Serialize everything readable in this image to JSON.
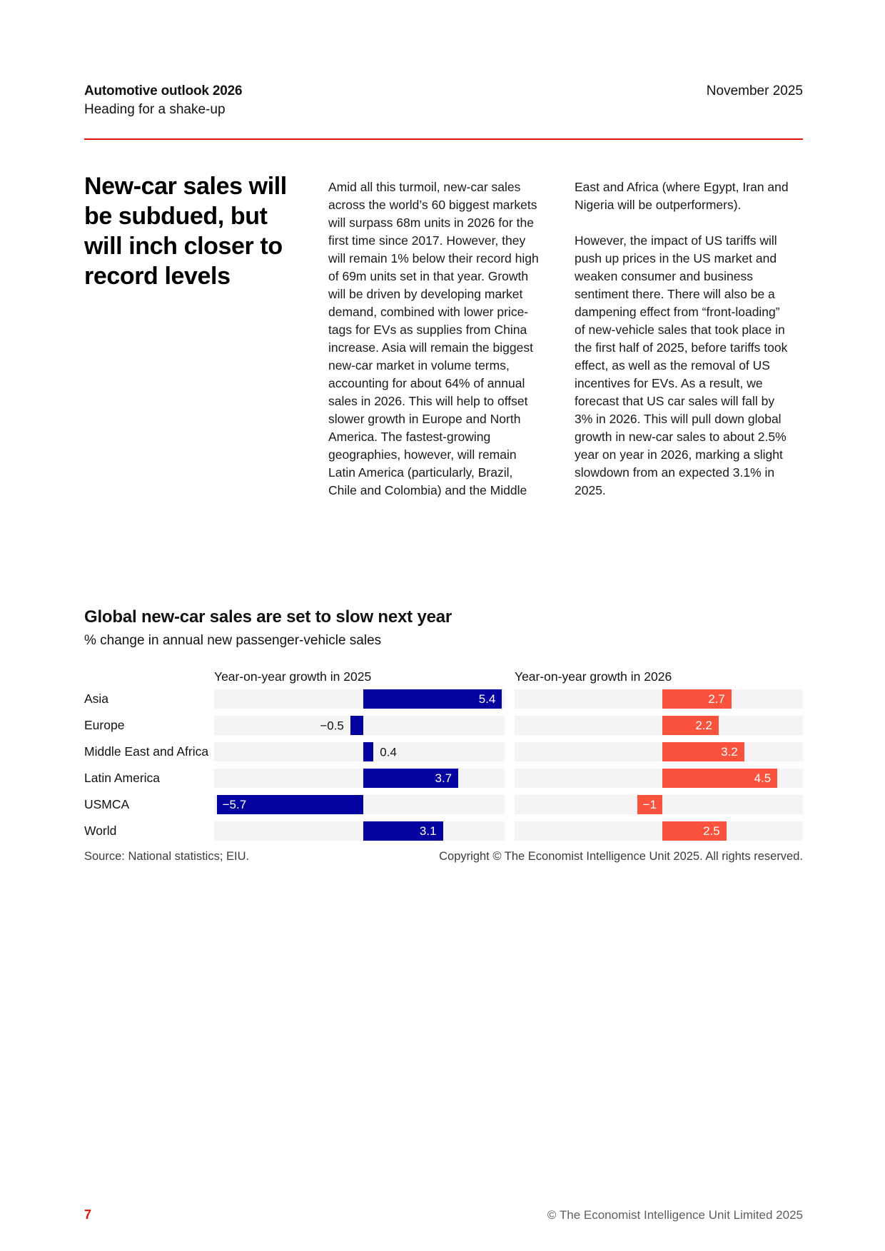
{
  "header": {
    "title": "Automotive outlook 2026",
    "subtitle": "Heading for a shake-up",
    "date": "November 2025"
  },
  "article": {
    "heading_lines": [
      "New-car sales will",
      "be subdued, but",
      "will inch closer to",
      "record levels"
    ],
    "column1_paragraphs": [
      "Amid all this turmoil, new-car sales across the world’s 60 biggest markets will surpass 68m units in 2026 for the first time since 2017. However, they will remain 1% below their record high of 69m units set in that year. Growth will be driven by developing market demand, combined with lower price-tags for EVs as supplies from China increase. Asia will remain the biggest new-car market in volume terms, accounting for about 64% of annual sales in 2026. This will help to offset slower growth in Europe and North America. The fastest-growing geographies, however, will remain Latin America (particularly, Brazil, Chile and Colombia) and the Middle"
    ],
    "column2_paragraphs": [
      "East and Africa (where Egypt, Iran and Nigeria will be outperformers).",
      "However, the impact of US tariffs will push up prices in the US market and weaken consumer and business sentiment there. There will also be a dampening effect from “front-loading” of new-vehicle sales that took place in the first half of 2025, before tariffs took effect, as well as the removal of US incentives for EVs. As a result, we forecast that US car sales will fall by 3% in 2026. This will pull down global growth in new-car sales to about 2.5% year on year in 2026, marking a slight slowdown from an expected 3.1% in 2025."
    ]
  },
  "chart_data": {
    "type": "bar",
    "orientation": "horizontal",
    "title": "Global new-car sales are set to slow next year",
    "subtitle": "% change in annual new passenger-vehicle sales",
    "categories": [
      "Asia",
      "Europe",
      "Middle East and Africa",
      "Latin America",
      "USMCA",
      "World"
    ],
    "series": [
      {
        "name": "Year-on-year growth in 2025",
        "color": "#0503a0",
        "values": [
          5.4,
          -0.5,
          0.4,
          3.7,
          -5.7,
          3.1
        ],
        "value_labels": [
          "5.4",
          "−0.5",
          "0.4",
          "3.7",
          "−5.7",
          "3.1"
        ],
        "label_inside": [
          true,
          false,
          false,
          true,
          true,
          true
        ]
      },
      {
        "name": "Year-on-year growth in 2026",
        "color": "#fa523c",
        "values": [
          2.7,
          2.2,
          3.2,
          4.5,
          -1,
          2.5
        ],
        "value_labels": [
          "2.7",
          "2.2",
          "3.2",
          "4.5",
          "−1",
          "2.5"
        ],
        "label_inside": [
          true,
          true,
          true,
          true,
          true,
          true
        ]
      }
    ],
    "xlim": [
      -5.8,
      5.5
    ],
    "grid": false,
    "legend_position": "headers above each panel",
    "track_color": "#f4f4f4"
  },
  "chart_footer": {
    "source": "Source: National statistics; EIU.",
    "copyright": "Copyright © The Economist Intelligence Unit 2025. All rights reserved."
  },
  "page_footer": {
    "page_number": "7",
    "copyright": "© The Economist Intelligence Unit Limited 2025"
  },
  "colors": {
    "accent_red": "#e3120b",
    "bar_2025": "#0503a0",
    "bar_2026": "#fa523c",
    "bar_track": "#f4f4f4",
    "footer_gray": "#5f5f63",
    "text": "#121212"
  }
}
